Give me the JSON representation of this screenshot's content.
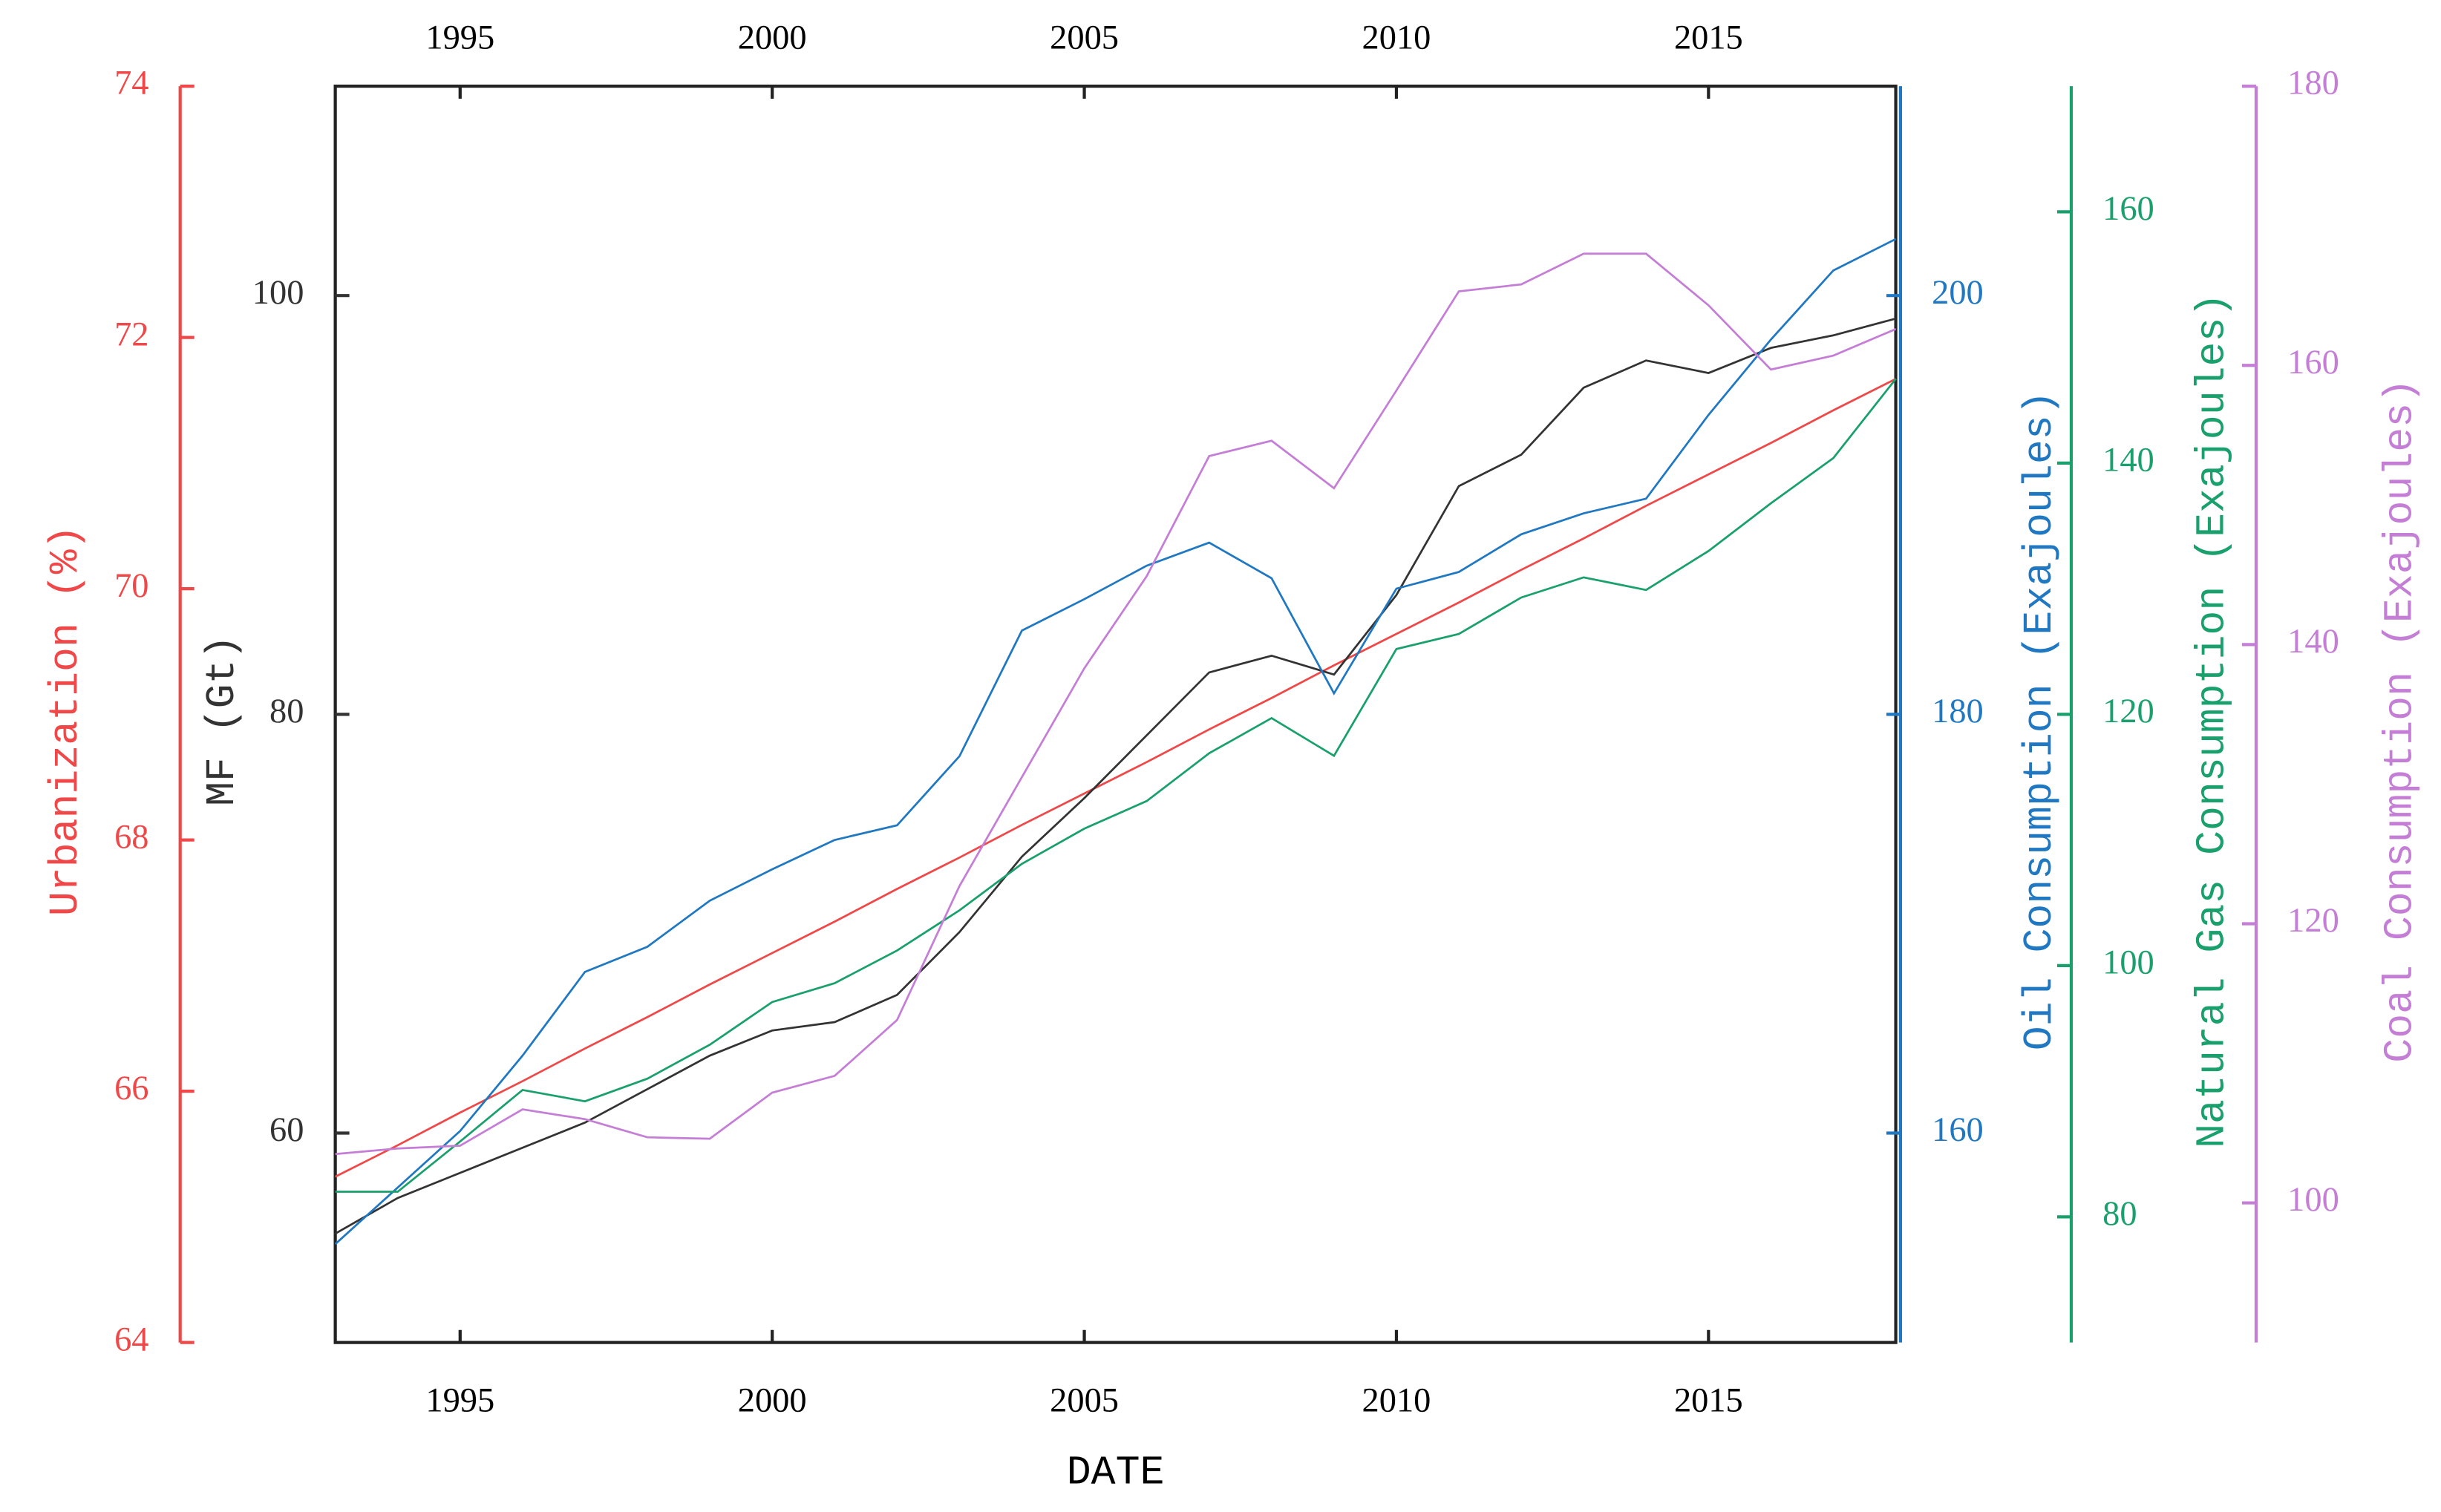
{
  "chart_data": {
    "type": "line",
    "xlabel": "DATE",
    "x": [
      1993,
      1994,
      1995,
      1996,
      1997,
      1998,
      1999,
      2000,
      2001,
      2002,
      2003,
      2004,
      2005,
      2006,
      2007,
      2008,
      2009,
      2010,
      2011,
      2012,
      2013,
      2014,
      2015,
      2016,
      2017,
      2018
    ],
    "xlim": [
      1993,
      2018
    ],
    "xticks": [
      1995,
      2000,
      2005,
      2010,
      2015
    ],
    "y_axes": [
      {
        "id": "y1",
        "label": "Urbanization (%)",
        "color": "#f04848",
        "ylim": [
          64,
          74
        ],
        "yticks": [
          64,
          66,
          68,
          70,
          72,
          74
        ]
      },
      {
        "id": "y",
        "label": "MF (Gt)",
        "color": "#333333",
        "ylim": [
          50,
          110
        ],
        "yticks": [
          60,
          80,
          100
        ]
      },
      {
        "id": "y2",
        "label": "Oil Consumption (Exajoules)",
        "color": "#1f78c1",
        "ylim": [
          150,
          210
        ],
        "yticks": [
          160,
          180,
          200
        ]
      },
      {
        "id": "y3",
        "label": "Natural Gas Consumption (Exajoules)",
        "color": "#19a06c",
        "ylim": [
          70,
          170
        ],
        "yticks": [
          80,
          100,
          120,
          140,
          160
        ]
      },
      {
        "id": "y4",
        "label": "Coal Consumption (Exajoules)",
        "color": "#c57ed6",
        "ylim": [
          90,
          180
        ],
        "yticks": [
          100,
          120,
          140,
          160,
          180
        ]
      }
    ],
    "series": [
      {
        "name": "Urbanization",
        "axis": "y1",
        "color": "#f04848",
        "values": [
          65.32,
          65.57,
          65.83,
          66.08,
          66.34,
          66.59,
          66.85,
          67.1,
          67.35,
          67.61,
          67.86,
          68.12,
          68.37,
          68.62,
          68.88,
          69.13,
          69.39,
          69.64,
          69.89,
          70.15,
          70.4,
          70.66,
          70.91,
          71.16,
          71.42,
          71.67
        ]
      },
      {
        "name": "MF",
        "axis": "y",
        "color": "#333333",
        "values": [
          55.2,
          56.9,
          58.1,
          59.3,
          60.5,
          62.1,
          63.7,
          64.9,
          65.3,
          66.6,
          69.6,
          73.2,
          76.0,
          79.0,
          82.0,
          82.8,
          81.9,
          85.7,
          90.9,
          92.4,
          95.6,
          96.9,
          96.3,
          97.5,
          98.1,
          98.9
        ]
      },
      {
        "name": "Oil Consumption",
        "axis": "y2",
        "color": "#1f78c1",
        "values": [
          154.7,
          157.4,
          160.1,
          163.7,
          167.7,
          168.9,
          171.1,
          172.6,
          174.0,
          174.7,
          178.0,
          184.0,
          185.5,
          187.1,
          188.2,
          186.5,
          181.0,
          186.0,
          186.8,
          188.6,
          189.6,
          190.3,
          194.3,
          197.9,
          201.2,
          202.7
        ]
      },
      {
        "name": "Natural Gas Consumption",
        "axis": "y3",
        "color": "#19a06c",
        "values": [
          82.0,
          82.0,
          86.0,
          90.1,
          89.2,
          91.0,
          93.7,
          97.1,
          98.6,
          101.2,
          104.4,
          108.1,
          110.9,
          113.1,
          116.9,
          119.7,
          116.7,
          125.2,
          126.4,
          129.3,
          130.9,
          129.9,
          133.0,
          136.8,
          140.4,
          146.7
        ]
      },
      {
        "name": "Coal Consumption",
        "axis": "y4",
        "color": "#c57ed6",
        "values": [
          103.5,
          103.9,
          104.1,
          106.7,
          106.0,
          104.7,
          104.6,
          107.9,
          109.1,
          113.1,
          122.7,
          130.5,
          138.3,
          144.9,
          153.5,
          154.6,
          151.2,
          158.2,
          165.3,
          165.8,
          168.0,
          168.0,
          164.3,
          159.7,
          160.7,
          162.6
        ]
      }
    ]
  }
}
